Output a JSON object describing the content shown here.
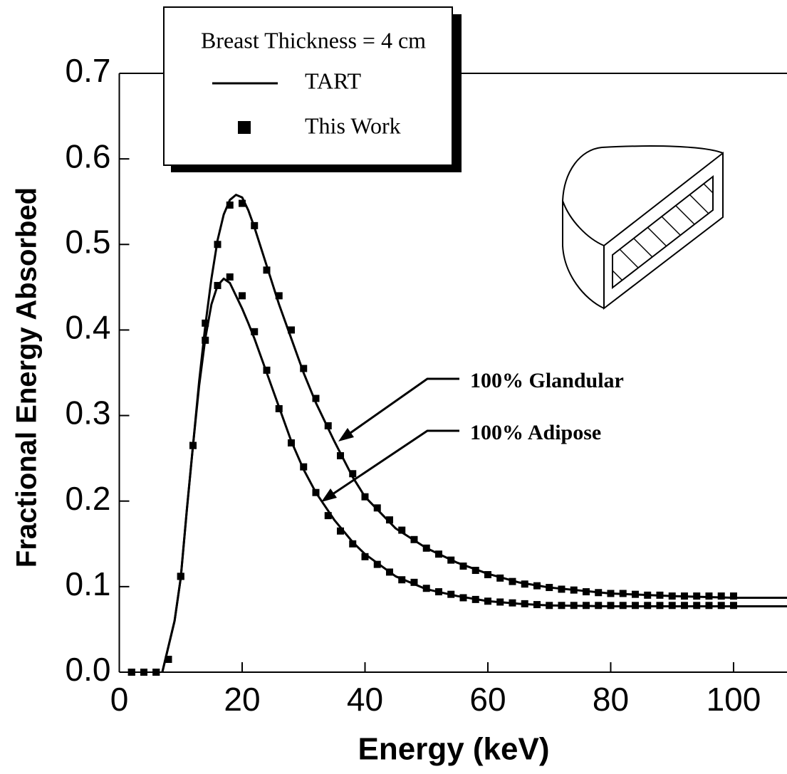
{
  "chart_data": {
    "type": "line",
    "xlabel": "Energy (keV)",
    "ylabel": "Fractional Energy Absorbed",
    "legend": {
      "title": "Breast Thickness = 4 cm",
      "entries": [
        "TART",
        "This Work"
      ]
    },
    "xlim": [
      0,
      108.7
    ],
    "ylim": [
      0,
      0.7
    ],
    "xticks": [
      0,
      20,
      40,
      60,
      80,
      100
    ],
    "yticks": [
      {
        "value": 0,
        "label": "0.0"
      },
      0.1,
      0.2,
      0.3,
      0.4,
      0.5,
      0.6,
      0.7
    ],
    "color": "#000000",
    "line_x": [
      7,
      8,
      9,
      10,
      11,
      12,
      13,
      14,
      15,
      16,
      17,
      18,
      19,
      20,
      21,
      22,
      24,
      26,
      28,
      30,
      32,
      35,
      38,
      40,
      45,
      50,
      55,
      60,
      65,
      70,
      80,
      90,
      100,
      108.7
    ],
    "point_x": [
      2,
      4,
      6,
      8,
      10,
      12,
      14,
      16,
      18,
      20,
      22,
      24,
      26,
      28,
      30,
      32,
      34,
      36,
      38,
      40,
      42,
      44,
      46,
      48,
      50,
      52,
      54,
      56,
      58,
      60,
      62,
      64,
      66,
      68,
      70,
      72,
      74,
      76,
      78,
      80,
      82,
      84,
      86,
      88,
      90,
      92,
      94,
      96,
      98,
      100
    ],
    "curves": [
      {
        "label": "100% Glandular",
        "line_values": [
          0,
          0.03,
          0.06,
          0.11,
          0.19,
          0.265,
          0.34,
          0.405,
          0.46,
          0.505,
          0.535,
          0.552,
          0.558,
          0.555,
          0.54,
          0.52,
          0.475,
          0.43,
          0.39,
          0.35,
          0.315,
          0.27,
          0.228,
          0.205,
          0.168,
          0.145,
          0.128,
          0.115,
          0.105,
          0.099,
          0.092,
          0.089,
          0.087,
          0.087
        ],
        "point_values": [
          0,
          0,
          0,
          0.015,
          0.112,
          0.265,
          0.408,
          0.5,
          0.546,
          0.548,
          0.522,
          0.47,
          0.44,
          0.4,
          0.355,
          0.32,
          0.288,
          0.253,
          0.232,
          0.205,
          0.192,
          0.178,
          0.166,
          0.155,
          0.145,
          0.138,
          0.131,
          0.124,
          0.119,
          0.114,
          0.11,
          0.106,
          0.103,
          0.101,
          0.099,
          0.097,
          0.096,
          0.094,
          0.093,
          0.092,
          0.092,
          0.091,
          0.09,
          0.09,
          0.089,
          0.089,
          0.089,
          0.089,
          0.089,
          0.089
        ]
      },
      {
        "label": "100% Adipose",
        "line_values": [
          0,
          0.03,
          0.06,
          0.11,
          0.19,
          0.265,
          0.335,
          0.39,
          0.43,
          0.452,
          0.46,
          0.455,
          0.44,
          0.425,
          0.408,
          0.39,
          0.35,
          0.31,
          0.27,
          0.237,
          0.21,
          0.178,
          0.152,
          0.138,
          0.112,
          0.097,
          0.089,
          0.083,
          0.08,
          0.078,
          0.077,
          0.077,
          0.077,
          0.077
        ],
        "point_values": [
          0,
          0,
          0,
          0.015,
          0.112,
          0.265,
          0.388,
          0.452,
          0.462,
          0.44,
          0.398,
          0.353,
          0.308,
          0.268,
          0.24,
          0.21,
          0.183,
          0.165,
          0.15,
          0.135,
          0.126,
          0.117,
          0.108,
          0.105,
          0.098,
          0.094,
          0.091,
          0.087,
          0.085,
          0.083,
          0.082,
          0.081,
          0.08,
          0.079,
          0.078,
          0.078,
          0.078,
          0.078,
          0.078,
          0.078,
          0.078,
          0.078,
          0.078,
          0.078,
          0.078,
          0.078,
          0.078,
          0.078,
          0.078,
          0.078
        ]
      }
    ]
  }
}
